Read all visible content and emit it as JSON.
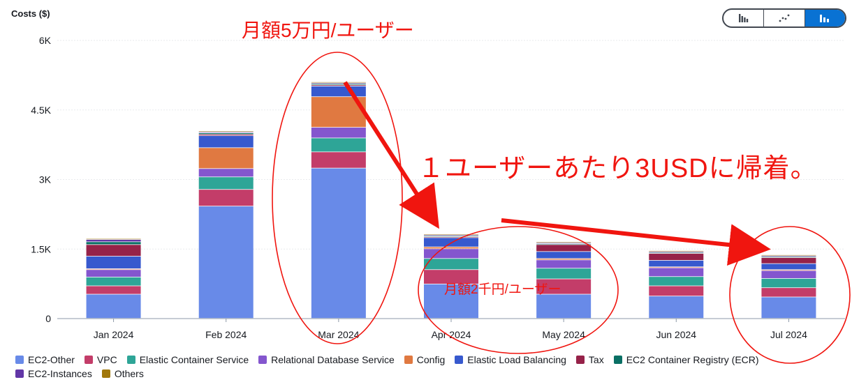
{
  "header": {
    "y_axis_title": "Costs ($)"
  },
  "view_toggle": {
    "options": [
      {
        "name": "bar-chart-view-button",
        "icon": "bar-chart-icon",
        "active": false
      },
      {
        "name": "line-chart-view-button",
        "icon": "line-chart-icon",
        "active": false
      },
      {
        "name": "stacked-bar-view-button",
        "icon": "stacked-bar-chart-icon",
        "active": true
      }
    ],
    "active_color": "#0972d3"
  },
  "annotations": {
    "top": "月額5万円/ユーザー",
    "middle": "１ユーザーあたり3USDに帰着。",
    "lower": "月額2千円/ユーザー",
    "color": "#f0150f"
  },
  "chart_data": {
    "type": "bar",
    "stacked": true,
    "categories": [
      "Jan 2024",
      "Feb 2024",
      "Mar 2024",
      "Apr 2024",
      "May 2024",
      "Jun 2024",
      "Jul 2024"
    ],
    "ylim": [
      0,
      6000
    ],
    "yticks": [
      {
        "value": 0,
        "label": "0"
      },
      {
        "value": 1500,
        "label": "1.5K"
      },
      {
        "value": 3000,
        "label": "3K"
      },
      {
        "value": 4500,
        "label": "4.5K"
      },
      {
        "value": 6000,
        "label": "6K"
      }
    ],
    "ylabel": "Costs ($)",
    "grid": true,
    "legend_position": "bottom",
    "series": [
      {
        "name": "EC2-Other",
        "color": "#688ae8",
        "values": [
          520,
          2420,
          3240,
          740,
          520,
          480,
          460
        ]
      },
      {
        "name": "VPC",
        "color": "#c33d69",
        "values": [
          180,
          360,
          350,
          310,
          330,
          220,
          200
        ]
      },
      {
        "name": "Elastic Container Service",
        "color": "#2ea597",
        "values": [
          190,
          270,
          300,
          240,
          230,
          200,
          200
        ]
      },
      {
        "name": "Relational Database Service",
        "color": "#8456ce",
        "values": [
          160,
          180,
          230,
          210,
          180,
          190,
          170
        ]
      },
      {
        "name": "Config",
        "color": "#e07941",
        "values": [
          20,
          450,
          660,
          40,
          30,
          20,
          20
        ]
      },
      {
        "name": "Elastic Load Balancing",
        "color": "#3759ce",
        "values": [
          270,
          260,
          230,
          200,
          150,
          140,
          130
        ]
      },
      {
        "name": "Tax",
        "color": "#962249",
        "values": [
          250,
          30,
          25,
          20,
          150,
          150,
          130
        ]
      },
      {
        "name": "EC2 Container Registry (ECR)",
        "color": "#096f64",
        "values": [
          60,
          30,
          25,
          20,
          20,
          20,
          20
        ]
      },
      {
        "name": "EC2-Instances",
        "color": "#6237a7",
        "values": [
          50,
          20,
          20,
          20,
          20,
          20,
          20
        ]
      },
      {
        "name": "Others",
        "color": "#a1780c",
        "values": [
          20,
          20,
          20,
          20,
          20,
          20,
          20
        ]
      }
    ]
  }
}
